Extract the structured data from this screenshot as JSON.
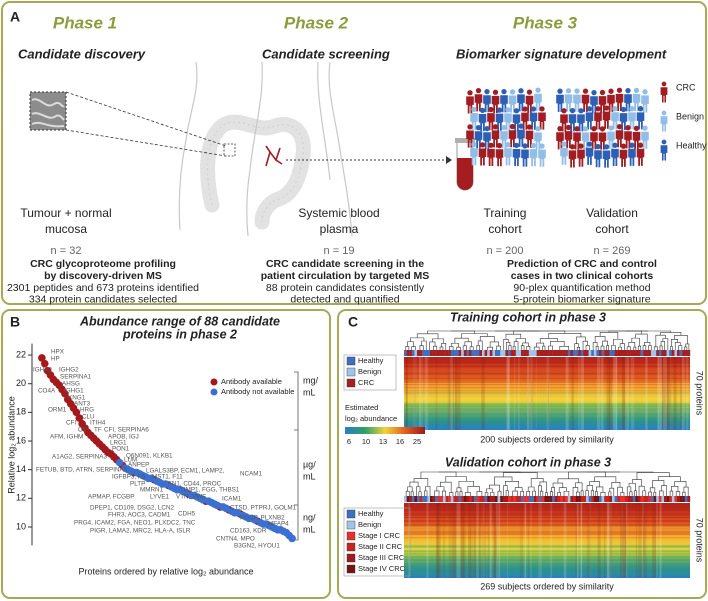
{
  "panel_a": {
    "label": "A",
    "phases": [
      {
        "phase": "Phase 1",
        "title": "Candidate discovery",
        "sample": [
          "Tumour + normal",
          "mucosa"
        ],
        "n": "n = 32",
        "summary_bold": [
          "CRC glycoproteome profiling",
          "by discovery-driven MS"
        ],
        "summary": [
          "2301 peptides and 673 proteins identified",
          "334 protein candidates selected"
        ]
      },
      {
        "phase": "Phase 2",
        "title": "Candidate screening",
        "sample": [
          "Systemic blood",
          "plasma"
        ],
        "n": "n = 19",
        "summary_bold": [
          "CRC candidate screening in the",
          "patient circulation by targeted MS"
        ],
        "summary": [
          "88 protein candidates consistently",
          "detected and quantified"
        ]
      },
      {
        "phase": "Phase 3",
        "title": "Biomarker signature development",
        "cohorts": [
          {
            "label": [
              "Training",
              "cohort"
            ],
            "n": "n = 200"
          },
          {
            "label": [
              "Validation",
              "cohort"
            ],
            "n": "n = 269"
          }
        ],
        "legend": [
          {
            "name": "CRC",
            "color": "#a01e23"
          },
          {
            "name": "Benign",
            "color": "#92bde6"
          },
          {
            "name": "Healthy",
            "color": "#2d5fb5"
          }
        ],
        "summary_bold": [
          "Prediction of CRC and control",
          "cases in two clinical cohorts"
        ],
        "summary": [
          "90-plex quantification method",
          "5-protein biomarker signature"
        ]
      }
    ]
  },
  "panel_b": {
    "label": "B"
  },
  "chart_data": {
    "type": "scatter",
    "title": [
      "Abundance range of 88 candidate",
      "proteins in phase 2"
    ],
    "ylabel": "Relative log₂ abundance",
    "xlabel": "Proteins ordered by relative log₂ abundance",
    "xlim": [
      0,
      89
    ],
    "ylim": [
      9,
      22.8
    ],
    "yticks": [
      10,
      12,
      14,
      16,
      18,
      20,
      22
    ],
    "series": [
      {
        "name": "Antibody available",
        "color": "#a3191c",
        "x": [
          1,
          2,
          3,
          4,
          5,
          6,
          7,
          8,
          9,
          10,
          11,
          12,
          13,
          14,
          15,
          16,
          17,
          18,
          19,
          20,
          21,
          22,
          23,
          24,
          25,
          26,
          27,
          29,
          33,
          40,
          45,
          52,
          58,
          63,
          66,
          70,
          76
        ],
        "values": [
          21.8,
          21.4,
          20.9,
          20.6,
          20.3,
          20.1,
          19.9,
          19.6,
          19.3,
          18.9,
          18.6,
          18.3,
          18.0,
          17.6,
          17.2,
          16.9,
          16.6,
          16.4,
          16.2,
          16.0,
          15.8,
          15.6,
          15.4,
          15.2,
          15.1,
          14.9,
          14.7,
          14.3,
          13.8,
          13.3,
          12.9,
          12.3,
          11.8,
          11.4,
          11.2,
          10.9,
          10.4
        ]
      },
      {
        "name": "Antibody not available",
        "color": "#3a70d2",
        "x": [
          28,
          30,
          31,
          32,
          34,
          35,
          36,
          37,
          38,
          39,
          41,
          42,
          43,
          44,
          46,
          47,
          48,
          49,
          50,
          51,
          53,
          54,
          55,
          56,
          57,
          59,
          60,
          61,
          62,
          64,
          65,
          67,
          68,
          69,
          71,
          72,
          73,
          74,
          75,
          77,
          78,
          79,
          80,
          81,
          82,
          83,
          84,
          85,
          86,
          87,
          88
        ],
        "values": [
          14.5,
          14.1,
          14.0,
          13.9,
          13.8,
          13.7,
          13.6,
          13.5,
          13.4,
          13.4,
          13.2,
          13.1,
          13.0,
          13.0,
          12.8,
          12.7,
          12.6,
          12.6,
          12.5,
          12.4,
          12.2,
          12.2,
          12.1,
          12.0,
          11.9,
          11.8,
          11.7,
          11.6,
          11.5,
          11.4,
          11.3,
          11.1,
          11.0,
          11.0,
          10.8,
          10.7,
          10.6,
          10.6,
          10.5,
          10.3,
          10.2,
          10.2,
          10.1,
          10.0,
          9.9,
          9.8,
          9.8,
          9.7,
          9.6,
          9.4,
          9.2
        ]
      }
    ],
    "units": [
      [
        "mg/",
        "mL"
      ],
      [
        "µg/",
        "mL"
      ],
      [
        "ng/",
        "mL"
      ]
    ],
    "annotations": [
      "HPX",
      "HP",
      "IGHA2",
      "IGHG2",
      "SERPINA1",
      "AHSG",
      "CO4A",
      "IGHG1",
      "KNG1",
      "ANT3",
      "ORM1",
      "HRG",
      "CLU",
      "CFI",
      "ITIH4",
      "C9",
      "TF",
      "CFI, SERPINA6",
      "AFM, IGHM",
      "APOB, IGJ",
      "LRG1",
      "PON1",
      "A1AG2, SERPINA3",
      "Q6N091, KLKB1",
      "FETUB, BTD, ATRN, SERPINA5",
      "LUM",
      "ANPEP",
      "LGALS3BP, ECM1, LAMP2,",
      "NCAM1",
      "IGFBP3, F5",
      "MST1, F11",
      "PLTP",
      "FN1, CD44, PROC",
      "MMRN1",
      "TIMP1, FGG, THBS1",
      "APMAP, FCGBP",
      "LYVE1",
      "VTN, VWF",
      "ICAM1",
      "DPEP1, CD109, DSG2, LCN2",
      "CTSD, PTPRJ, GOLM1",
      "FHR3, AOC3, CADM1",
      "CDH5",
      "PGCP, PLXNB2",
      "PRG4, ICAM2, FGA, NEO1, PLXDC2, TNC",
      "MFAP4",
      "PIGR, LAMA2, MRC2, HLA-A, ISLR",
      "CD163, KDR",
      "CNTN4, MPO",
      "B3GN2, HYOU1"
    ]
  },
  "panel_c": {
    "label": "C",
    "heatmaps": [
      {
        "title": "Training cohort in phase 3",
        "legend": [
          {
            "name": "Healthy",
            "color": "#3f6fbf"
          },
          {
            "name": "Benign",
            "color": "#9ec5ea"
          },
          {
            "name": "CRC",
            "color": "#a52020"
          }
        ],
        "rows_label": "70 proteins",
        "cols_label": "200 subjects ordered by similarity"
      },
      {
        "title": "Validation cohort in phase 3",
        "legend": [
          {
            "name": "Healthy",
            "color": "#3f6fbf"
          },
          {
            "name": "Benign",
            "color": "#9ec5ea"
          },
          {
            "name": "Stage I CRC",
            "color": "#e8302a"
          },
          {
            "name": "Stage II CRC",
            "color": "#c62420"
          },
          {
            "name": "Stage III CRC",
            "color": "#a11c1a"
          },
          {
            "name": "Stage IV CRC",
            "color": "#761313"
          }
        ],
        "rows_label": "70 proteins",
        "cols_label": "269 subjects ordered by similarity"
      }
    ],
    "colorbar": {
      "title": [
        "Estimated",
        "log₂ abundance"
      ],
      "ticks": [
        6,
        10,
        13,
        16,
        25
      ]
    }
  }
}
